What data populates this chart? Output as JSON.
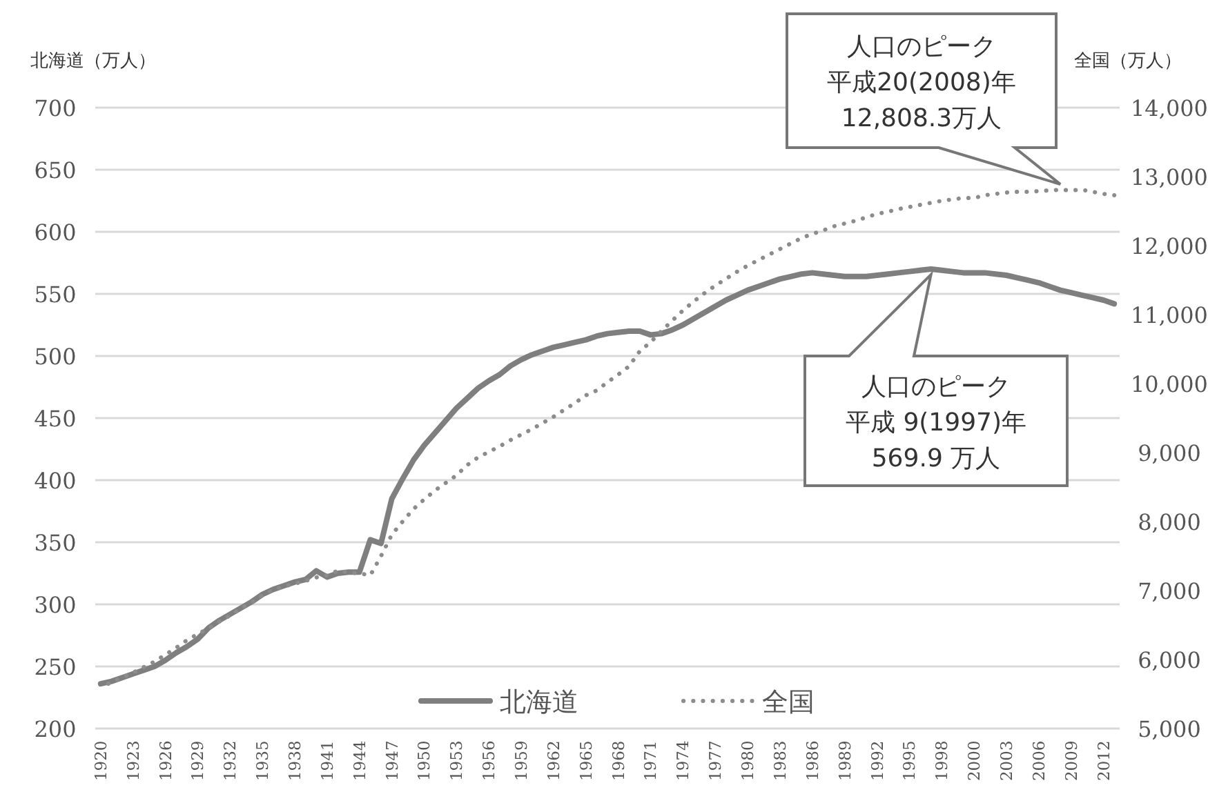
{
  "chart_data": {
    "type": "line",
    "ylabel": "北海道（万人）",
    "y2label": "全国（万人）",
    "categories": [
      "1920",
      null,
      null,
      "1923",
      null,
      null,
      "1926",
      null,
      null,
      "1929",
      null,
      null,
      "1932",
      null,
      null,
      "1935",
      null,
      null,
      "1938",
      null,
      null,
      "1941",
      null,
      null,
      "1944",
      null,
      null,
      "1947",
      null,
      null,
      "1950",
      null,
      null,
      "1953",
      null,
      null,
      "1956",
      null,
      null,
      "1959",
      null,
      null,
      "1962",
      null,
      null,
      "1965",
      null,
      null,
      "1968",
      null,
      null,
      "1971",
      null,
      null,
      "1974",
      null,
      null,
      "1977",
      null,
      null,
      "1980",
      null,
      null,
      "1983",
      null,
      null,
      "1986",
      null,
      null,
      "1989",
      null,
      null,
      "1992",
      null,
      null,
      "1995",
      null,
      null,
      "1998",
      null,
      null,
      "2000",
      null,
      null,
      "2003",
      null,
      null,
      "2006",
      null,
      null,
      "2009",
      null,
      null,
      "2012",
      null
    ],
    "series": [
      {
        "name": "北海道",
        "color": "#7f7f7f",
        "line_style": "solid",
        "values": [
          236,
          238,
          241,
          244,
          247,
          250,
          255,
          261,
          266,
          272,
          281,
          287,
          292,
          297,
          302,
          308,
          312,
          315,
          318,
          320,
          327,
          322,
          325,
          326,
          326,
          352,
          349,
          385,
          401,
          416,
          428,
          438,
          448,
          458,
          466,
          474,
          480,
          485,
          492,
          497,
          501,
          504,
          507,
          509,
          511,
          513,
          516,
          518,
          519,
          520,
          520,
          517,
          518,
          521,
          525,
          530,
          535,
          540,
          545,
          549,
          553,
          556,
          559,
          562,
          564,
          566,
          567,
          566,
          565,
          564,
          564,
          564,
          565,
          566,
          567,
          568,
          569,
          570,
          569,
          568,
          567,
          567,
          567,
          566,
          565,
          563,
          561,
          559,
          556,
          553,
          551,
          549,
          547,
          545,
          542
        ]
      },
      {
        "name": "全国",
        "color": "#8c8c8c",
        "line_style": "dotted",
        "axis": "y2",
        "values": [
          5600,
          5670,
          5740,
          5810,
          5890,
          5970,
          6070,
          6170,
          6280,
          6370,
          6450,
          6550,
          6640,
          6740,
          6830,
          6930,
          7010,
          7060,
          7100,
          7140,
          7190,
          7220,
          7290,
          7260,
          7250,
          7220,
          7500,
          7810,
          8000,
          8180,
          8320,
          8450,
          8560,
          8670,
          8820,
          8930,
          9010,
          9090,
          9180,
          9260,
          9340,
          9430,
          9520,
          9620,
          9720,
          9830,
          9900,
          10020,
          10130,
          10250,
          10470,
          10600,
          10760,
          10910,
          11060,
          11190,
          11310,
          11420,
          11520,
          11620,
          11710,
          11790,
          11870,
          11950,
          12030,
          12110,
          12170,
          12220,
          12280,
          12320,
          12360,
          12410,
          12460,
          12490,
          12530,
          12560,
          12590,
          12620,
          12650,
          12670,
          12690,
          12690,
          12730,
          12750,
          12770,
          12780,
          12780,
          12790,
          12800,
          12810,
          12800,
          12810,
          12780,
          12750,
          12730
        ]
      }
    ],
    "ylim": [
      200,
      700
    ],
    "yticks": [
      200,
      250,
      300,
      350,
      400,
      450,
      500,
      550,
      600,
      650,
      700
    ],
    "y2lim": [
      5000,
      14000
    ],
    "y2ticks": [
      {
        "value": 5000,
        "label": "5,000"
      },
      {
        "value": 6000,
        "label": "6,000"
      },
      {
        "value": 7000,
        "label": "7,000"
      },
      {
        "value": 8000,
        "label": "8,000"
      },
      {
        "value": 9000,
        "label": "9,000"
      },
      {
        "value": 10000,
        "label": "10,000"
      },
      {
        "value": 11000,
        "label": "11,000"
      },
      {
        "value": 12000,
        "label": "12,000"
      },
      {
        "value": 13000,
        "label": "13,000"
      },
      {
        "value": 14000,
        "label": "14,000"
      }
    ],
    "grid": "y",
    "legend": "bottom",
    "annotations": [
      "人口のピーク",
      "平成20(2008)年",
      "12,808.3万人",
      "人口のピーク",
      "平成 9(1997)年",
      "569.9 万人"
    ]
  }
}
